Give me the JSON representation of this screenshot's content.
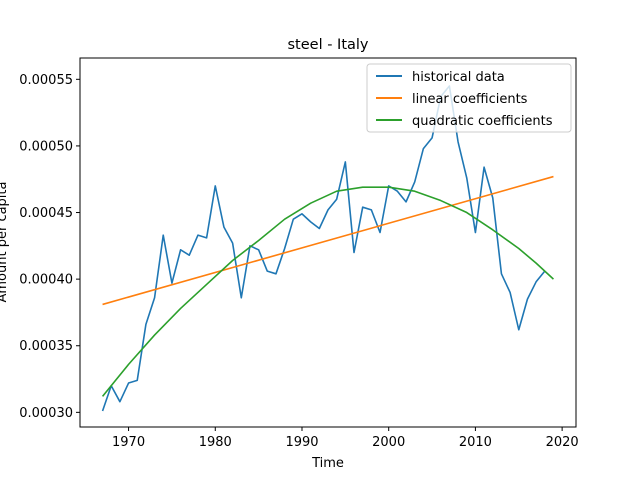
{
  "chart_data": {
    "type": "line",
    "title": "steel - Italy",
    "xlabel": "Time",
    "ylabel": "Amount per capita",
    "xlim": [
      1964.4,
      2021.6
    ],
    "ylim": [
      0.000289,
      0.000566
    ],
    "x_ticks": [
      1970,
      1980,
      1990,
      2000,
      2010,
      2020
    ],
    "x_tick_labels": [
      "1970",
      "1980",
      "1990",
      "2000",
      "2010",
      "2020"
    ],
    "y_ticks": [
      0.0003,
      0.00035,
      0.0004,
      0.00045,
      0.0005,
      0.00055
    ],
    "y_tick_labels": [
      "0.00030",
      "0.00035",
      "0.00040",
      "0.00045",
      "0.00050",
      "0.00055"
    ],
    "grid": false,
    "legend_position": "top-right",
    "series": [
      {
        "name": "historical data",
        "color": "#1f77b4",
        "x": [
          1967,
          1968,
          1969,
          1970,
          1971,
          1972,
          1973,
          1974,
          1975,
          1976,
          1977,
          1978,
          1979,
          1980,
          1981,
          1982,
          1983,
          1984,
          1985,
          1986,
          1987,
          1988,
          1989,
          1990,
          1991,
          1992,
          1993,
          1994,
          1995,
          1996,
          1997,
          1998,
          1999,
          2000,
          2001,
          2002,
          2003,
          2004,
          2005,
          2006,
          2007,
          2008,
          2009,
          2010,
          2011,
          2012,
          2013,
          2014,
          2015,
          2016,
          2017,
          2018
        ],
        "values": [
          0.000301,
          0.00032,
          0.000308,
          0.000322,
          0.000324,
          0.000366,
          0.000386,
          0.000433,
          0.000397,
          0.000422,
          0.000418,
          0.000433,
          0.000431,
          0.00047,
          0.000439,
          0.000427,
          0.000386,
          0.000425,
          0.000422,
          0.000406,
          0.000404,
          0.000423,
          0.000445,
          0.000449,
          0.000443,
          0.000438,
          0.000452,
          0.00046,
          0.000488,
          0.00042,
          0.000454,
          0.000452,
          0.000435,
          0.00047,
          0.000466,
          0.000458,
          0.000473,
          0.000498,
          0.000506,
          0.000537,
          0.000545,
          0.000503,
          0.000476,
          0.000435,
          0.000484,
          0.000461,
          0.000404,
          0.00039,
          0.000362,
          0.000385,
          0.000398,
          0.000406
        ]
      },
      {
        "name": "linear coefficients",
        "color": "#ff7f0e",
        "x": [
          1967,
          2019
        ],
        "values": [
          0.000381,
          0.000477
        ]
      },
      {
        "name": "quadratic coefficients",
        "color": "#2ca02c",
        "x": [
          1967,
          1970,
          1973,
          1976,
          1979,
          1982,
          1985,
          1988,
          1991,
          1994,
          1997,
          1998,
          2000,
          2003,
          2006,
          2009,
          2012,
          2015,
          2017,
          2019
        ],
        "values": [
          0.000312,
          0.000336,
          0.000358,
          0.000378,
          0.000396,
          0.000414,
          0.000429,
          0.000445,
          0.000457,
          0.000466,
          0.000469,
          0.000469,
          0.000469,
          0.000466,
          0.000459,
          0.00045,
          0.000437,
          0.000423,
          0.000412,
          0.0004
        ]
      }
    ]
  }
}
